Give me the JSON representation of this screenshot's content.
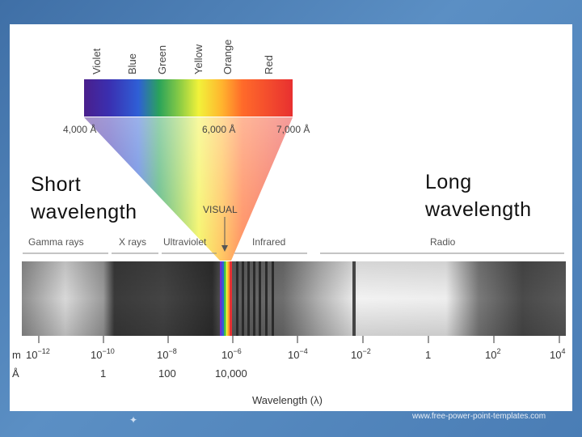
{
  "colors": {
    "spectrum": [
      "#4a1f8c",
      "#3a2fb0",
      "#2f5fd6",
      "#2aa35a",
      "#7cc94a",
      "#f2f23a",
      "#ffb52e",
      "#ff6a2a",
      "#e83030"
    ]
  },
  "color_labels": [
    "Violet",
    "Blue",
    "Green",
    "Yellow",
    "Orange",
    "Red"
  ],
  "visual_wavelengths": [
    "4,000 Å",
    "6,000 Å",
    "7,000 Å"
  ],
  "visual_label": "VISUAL",
  "band_labels": [
    "Gamma rays",
    "X rays",
    "Ultraviolet",
    "Infrared",
    "Radio"
  ],
  "meter_unit": "m",
  "angstrom_unit": "Å",
  "meter_ticks": [
    {
      "base": "10",
      "exp": "−12"
    },
    {
      "base": "10",
      "exp": "−10"
    },
    {
      "base": "10",
      "exp": "−8"
    },
    {
      "base": "10",
      "exp": "−6"
    },
    {
      "base": "10",
      "exp": "−4"
    },
    {
      "base": "10",
      "exp": "−2"
    },
    {
      "base": "1",
      "exp": ""
    },
    {
      "base": "10",
      "exp": "2"
    },
    {
      "base": "10",
      "exp": "4"
    }
  ],
  "angstrom_ticks": [
    "1",
    "100",
    "10,000"
  ],
  "axis_title": "Wavelength (λ)",
  "short_label": "Short wavelength",
  "short_lines": [
    "Short",
    "wavelength"
  ],
  "long_label": "Long wavelength",
  "long_lines": [
    "Long",
    "wavelength"
  ],
  "footer": "www.free-power-point-templates.com"
}
